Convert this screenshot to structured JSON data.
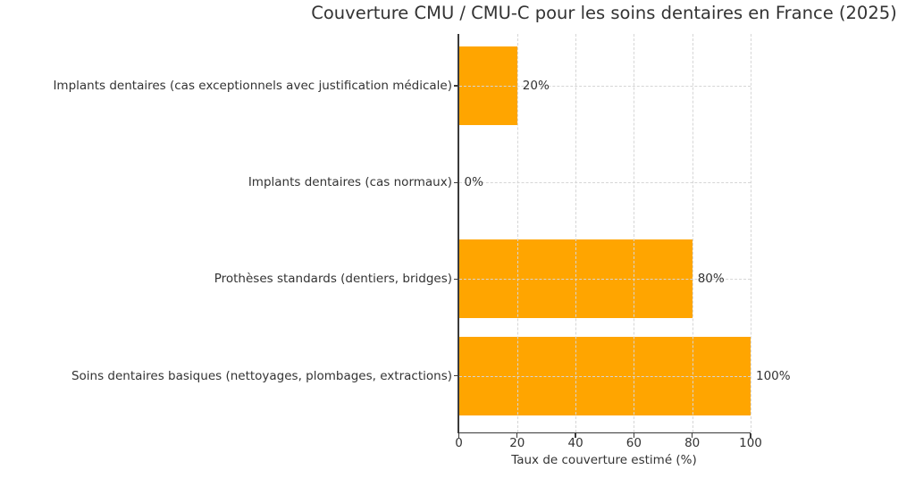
{
  "chart_data": {
    "type": "bar",
    "orientation": "horizontal",
    "title": "Couverture CMU / CMU-C pour les soins dentaires en France (2025)",
    "xlabel": "Taux de couverture estimé (%)",
    "ylabel": "",
    "categories": [
      "Implants dentaires (cas exceptionnels avec justification médicale)",
      "Implants dentaires (cas normaux)",
      "Prothèses standards (dentiers, bridges)",
      "Soins dentaires basiques (nettoyages, plombages, extractions)"
    ],
    "values": [
      20,
      0,
      80,
      100
    ],
    "value_labels": [
      "20%",
      "0%",
      "80%",
      "100%"
    ],
    "xlim": [
      0,
      100
    ],
    "x_ticks": [
      0,
      20,
      40,
      60,
      80,
      100
    ],
    "x_tick_labels": [
      "0",
      "20",
      "40",
      "60",
      "80",
      "100"
    ],
    "grid": {
      "style": "dashed",
      "above_bars": true
    },
    "legend": null,
    "colors": {
      "bar": "#FFA500",
      "text": "#333333",
      "axis": "#3a3a3a",
      "grid": "#d6d6d6"
    }
  }
}
